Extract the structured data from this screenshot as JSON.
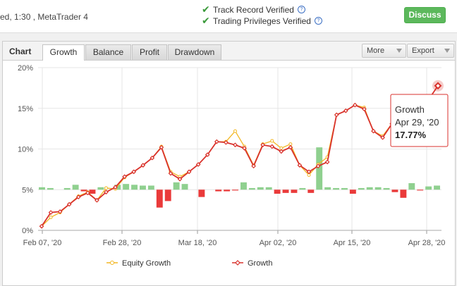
{
  "header": {
    "account_info": "ed, 1:30 , MetaTrader 4",
    "verifications": [
      {
        "label": "Track Record Verified",
        "help": "?"
      },
      {
        "label": "Trading Privileges Verified",
        "help": "?"
      }
    ],
    "discuss_label": "Discuss"
  },
  "panel": {
    "title": "Chart",
    "tabs": [
      "Growth",
      "Balance",
      "Profit",
      "Drawdown"
    ],
    "active_tab": "Growth",
    "more_label": "More",
    "export_label": "Export"
  },
  "tooltip": {
    "series": "Growth",
    "date": "Apr 29, '20",
    "value": "17.77%"
  },
  "colors": {
    "growth": "#d9322d",
    "equity": "#f2b724",
    "positive_bar": "#8fd08f",
    "negative_bar": "#ea3a3a",
    "accent_green": "#5cb85c"
  },
  "chart_data": {
    "type": "line",
    "x_ticks": [
      "Feb 07, '20",
      "Feb 28, '20",
      "Mar 18, '20",
      "Apr 02, '20",
      "Apr 15, '20",
      "Apr 28, '20"
    ],
    "y_ticks": [
      "20%",
      "15%",
      "10%",
      "5%",
      "0%"
    ],
    "ylim": [
      0,
      20
    ],
    "grid": true,
    "legend": "bottom",
    "series": [
      {
        "name": "Equity Growth",
        "color": "#f2b724",
        "values": [
          0.5,
          1.6,
          2.2,
          3.2,
          4.2,
          4.7,
          3.7,
          5.2,
          5.1,
          6.5,
          7.2,
          8.0,
          8.9,
          10.3,
          7.2,
          6.6,
          7.2,
          8.1,
          9.3,
          10.9,
          10.9,
          12.2,
          10.3,
          8.0,
          10.6,
          11.0,
          10.1,
          10.6,
          8.0,
          6.8,
          8.1,
          9.0,
          14.2,
          14.7,
          15.4,
          15.1,
          12.2,
          11.6,
          13.1,
          12.8,
          13.0,
          14.3,
          16.1,
          17.77
        ]
      },
      {
        "name": "Growth",
        "color": "#d9322d",
        "values": [
          0.5,
          2.2,
          2.3,
          3.2,
          4.1,
          4.6,
          3.7,
          4.7,
          5.3,
          6.6,
          7.2,
          8.0,
          8.9,
          10.2,
          7.0,
          6.3,
          7.2,
          8.1,
          9.3,
          10.9,
          10.8,
          10.5,
          10.1,
          7.9,
          10.5,
          10.3,
          9.7,
          10.2,
          8.0,
          7.2,
          7.9,
          8.4,
          14.2,
          14.7,
          15.4,
          14.9,
          12.2,
          11.4,
          13.1,
          12.8,
          13.0,
          14.3,
          16.1,
          17.77
        ]
      }
    ],
    "bars": [
      0.3,
      0.2,
      0,
      0.2,
      0.6,
      -0.2,
      -0.5,
      0.3,
      0,
      0.6,
      0.7,
      0.6,
      0.5,
      0.5,
      -2.2,
      -1.4,
      0.9,
      0.7,
      0,
      -0.9,
      0,
      -0.2,
      -0.2,
      -0.1,
      0.9,
      0.2,
      0.3,
      0.3,
      -0.5,
      -0.4,
      -0.4,
      0.2,
      -0.4,
      5.2,
      0.3,
      0.2,
      0.2,
      -0.5,
      0.2,
      0.3,
      0.3,
      0.2,
      -0.3,
      -1.0,
      0.8,
      -0.1,
      0.4,
      0.5
    ],
    "bar_series_colors": {
      "positive": "#8fd08f",
      "negative": "#ea3a3a"
    }
  }
}
